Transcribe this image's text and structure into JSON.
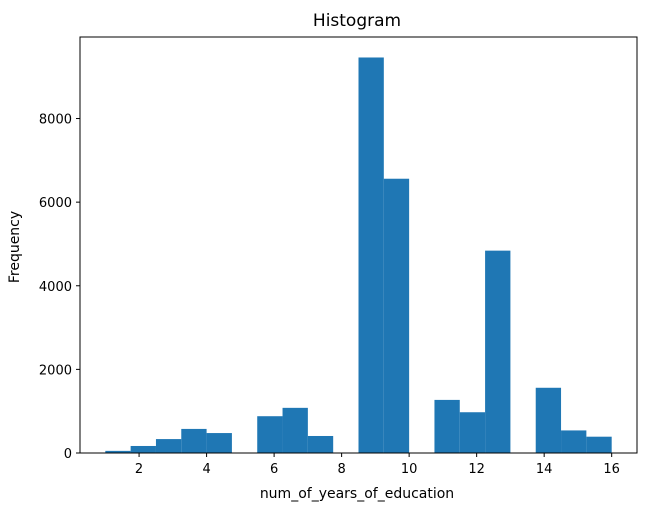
{
  "chart_data": {
    "type": "bar",
    "title": "Histogram",
    "xlabel": "num_of_years_of_education",
    "ylabel": "Frequency",
    "xlim": [
      0.25,
      16.75
    ],
    "ylim": [
      0,
      9950
    ],
    "xticks": [
      2,
      4,
      6,
      8,
      10,
      12,
      14,
      16
    ],
    "yticks": [
      0,
      2000,
      4000,
      6000,
      8000
    ],
    "bin_edges": [
      1.0,
      1.75,
      2.5,
      3.25,
      4.0,
      4.75,
      5.5,
      6.25,
      7.0,
      7.75,
      8.5,
      9.25,
      10.0,
      10.75,
      11.5,
      12.25,
      13.0,
      13.75,
      14.5,
      15.25,
      16.0
    ],
    "values": [
      51,
      168,
      333,
      576,
      477,
      0,
      880,
      1080,
      407,
      0,
      9460,
      6560,
      0,
      1270,
      975,
      4840,
      0,
      1560,
      540,
      390
    ],
    "bar_color": "#1f77b4",
    "grid": false
  }
}
